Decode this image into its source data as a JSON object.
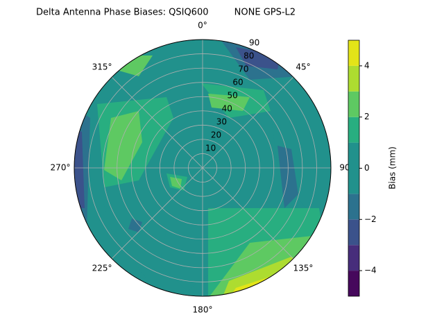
{
  "chart_data": {
    "type": "polar_contour",
    "title": "Delta Antenna Phase Biases: QSIQ600         NONE GPS-L2",
    "colorbar_label": "Bias (mm)",
    "levels": [
      -5,
      -4,
      -3,
      -2,
      -1,
      0,
      1,
      2,
      3,
      4,
      5
    ],
    "colors": [
      "#46085c",
      "#472d7b",
      "#3b528b",
      "#2c728e",
      "#21918c",
      "#21918c",
      "#28ae80",
      "#5ec962",
      "#addc30",
      "#e3e418"
    ],
    "clim": [
      -5,
      5
    ],
    "cticks": [
      {
        "value": -4,
        "label": "−4"
      },
      {
        "value": -2,
        "label": "−2"
      },
      0,
      2,
      4
    ],
    "rlim": [
      0,
      90
    ],
    "rticks": [
      10,
      20,
      30,
      40,
      50,
      60,
      70,
      80,
      90
    ],
    "thetaticks": [
      {
        "value": 0,
        "label": "0°"
      },
      {
        "value": 45,
        "label": "45°"
      },
      {
        "value": 90,
        "label": "90"
      },
      {
        "value": 135,
        "label": "135°"
      },
      {
        "value": 180,
        "label": "180°"
      },
      {
        "value": 225,
        "label": "225°"
      },
      {
        "value": 270,
        "label": "270°"
      },
      {
        "value": 315,
        "label": "315°"
      }
    ],
    "grid": true
  }
}
